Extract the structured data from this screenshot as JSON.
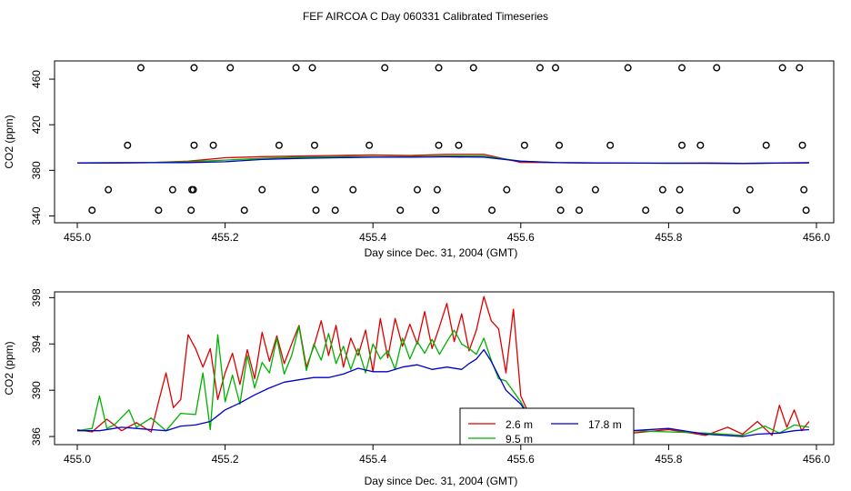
{
  "title": "FEF AIRCOA C  Day 060331  Calibrated Timeseries",
  "colors": {
    "red": "#dd0000",
    "green": "#00b000",
    "blue": "#0000cc",
    "black": "#000000"
  },
  "chart_data": [
    {
      "type": "scatter",
      "xlabel": "Day since Dec. 31, 2004 (GMT)",
      "ylabel": "CO2 (ppm)",
      "xlim": [
        455.0,
        456.0
      ],
      "ylim": [
        334,
        476
      ],
      "xticks": [
        "455.0",
        "455.2",
        "455.4",
        "455.6",
        "455.8",
        "456.0"
      ],
      "yticks": [
        "340",
        "380",
        "420",
        "460"
      ],
      "grid": false,
      "series": [
        {
          "color": "red",
          "x": [
            455.0,
            455.05,
            455.1,
            455.15,
            455.2,
            455.25,
            455.3,
            455.35,
            455.4,
            455.45,
            455.5,
            455.55,
            455.6,
            455.65,
            455.7,
            455.75,
            455.8,
            455.85,
            455.9,
            455.95,
            455.99
          ],
          "values": [
            386.5,
            386.5,
            386.8,
            388,
            391,
            392,
            392.5,
            393,
            393.5,
            393,
            394,
            394,
            387,
            386.8,
            386.5,
            386.3,
            386.3,
            386.5,
            386.2,
            386.5,
            386.8
          ]
        },
        {
          "color": "green",
          "x": [
            455.0,
            455.05,
            455.1,
            455.15,
            455.2,
            455.25,
            455.3,
            455.35,
            455.4,
            455.45,
            455.5,
            455.55,
            455.6,
            455.65,
            455.7,
            455.75,
            455.8,
            455.85,
            455.9,
            455.95,
            455.99
          ],
          "values": [
            386.5,
            386.8,
            386.8,
            387.5,
            389,
            390.5,
            391.5,
            392,
            392,
            392,
            392.5,
            392.5,
            388,
            386.8,
            386.5,
            386.3,
            386.3,
            386.3,
            386.2,
            386.4,
            386.6
          ]
        },
        {
          "color": "blue",
          "x": [
            455.0,
            455.05,
            455.1,
            455.15,
            455.2,
            455.25,
            455.3,
            455.35,
            455.4,
            455.45,
            455.5,
            455.55,
            455.6,
            455.65,
            455.7,
            455.75,
            455.8,
            455.85,
            455.9,
            455.95,
            455.99
          ],
          "values": [
            386.5,
            386.6,
            386.7,
            386.8,
            387.5,
            389.5,
            390.5,
            391,
            391.5,
            391.5,
            391.8,
            391.5,
            388,
            386.7,
            386.5,
            386.3,
            386.2,
            386.2,
            386.0,
            386.3,
            386.6
          ]
        }
      ],
      "points": [
        {
          "x": 455.086,
          "y": 470
        },
        {
          "x": 455.158,
          "y": 470
        },
        {
          "x": 455.207,
          "y": 470
        },
        {
          "x": 455.296,
          "y": 470
        },
        {
          "x": 455.318,
          "y": 470
        },
        {
          "x": 455.416,
          "y": 470
        },
        {
          "x": 455.489,
          "y": 470
        },
        {
          "x": 455.536,
          "y": 470
        },
        {
          "x": 455.626,
          "y": 470
        },
        {
          "x": 455.647,
          "y": 470
        },
        {
          "x": 455.745,
          "y": 470
        },
        {
          "x": 455.818,
          "y": 470
        },
        {
          "x": 455.865,
          "y": 470
        },
        {
          "x": 455.954,
          "y": 470
        },
        {
          "x": 455.977,
          "y": 470
        },
        {
          "x": 455.068,
          "y": 402
        },
        {
          "x": 455.158,
          "y": 402
        },
        {
          "x": 455.184,
          "y": 402
        },
        {
          "x": 455.273,
          "y": 402
        },
        {
          "x": 455.321,
          "y": 402
        },
        {
          "x": 455.395,
          "y": 402
        },
        {
          "x": 455.489,
          "y": 402
        },
        {
          "x": 455.516,
          "y": 402
        },
        {
          "x": 455.605,
          "y": 402
        },
        {
          "x": 455.652,
          "y": 402
        },
        {
          "x": 455.721,
          "y": 402
        },
        {
          "x": 455.818,
          "y": 402
        },
        {
          "x": 455.843,
          "y": 402
        },
        {
          "x": 455.932,
          "y": 402
        },
        {
          "x": 455.981,
          "y": 402
        },
        {
          "x": 455.042,
          "y": 363
        },
        {
          "x": 455.129,
          "y": 363
        },
        {
          "x": 455.155,
          "y": 363
        },
        {
          "x": 455.157,
          "y": 363
        },
        {
          "x": 455.25,
          "y": 363
        },
        {
          "x": 455.322,
          "y": 363
        },
        {
          "x": 455.373,
          "y": 363
        },
        {
          "x": 455.46,
          "y": 363
        },
        {
          "x": 455.487,
          "y": 363
        },
        {
          "x": 455.581,
          "y": 363
        },
        {
          "x": 455.652,
          "y": 363
        },
        {
          "x": 455.701,
          "y": 363
        },
        {
          "x": 455.792,
          "y": 363
        },
        {
          "x": 455.815,
          "y": 363
        },
        {
          "x": 455.91,
          "y": 363
        },
        {
          "x": 455.983,
          "y": 363
        },
        {
          "x": 455.02,
          "y": 345
        },
        {
          "x": 455.11,
          "y": 345
        },
        {
          "x": 455.154,
          "y": 345
        },
        {
          "x": 455.226,
          "y": 345
        },
        {
          "x": 455.323,
          "y": 345
        },
        {
          "x": 455.349,
          "y": 345
        },
        {
          "x": 455.437,
          "y": 345
        },
        {
          "x": 455.485,
          "y": 345
        },
        {
          "x": 455.561,
          "y": 345
        },
        {
          "x": 455.654,
          "y": 345
        },
        {
          "x": 455.679,
          "y": 345
        },
        {
          "x": 455.769,
          "y": 345
        },
        {
          "x": 455.815,
          "y": 345
        },
        {
          "x": 455.892,
          "y": 345
        },
        {
          "x": 455.986,
          "y": 345
        }
      ]
    },
    {
      "type": "line",
      "xlabel": "Day since Dec. 31, 2004 (GMT)",
      "ylabel": "CO2 (ppm)",
      "xlim": [
        455.0,
        456.0
      ],
      "ylim": [
        385.3,
        398.5
      ],
      "xticks": [
        "455.0",
        "455.2",
        "455.4",
        "455.6",
        "455.8",
        "456.0"
      ],
      "yticks": [
        "386",
        "390",
        "394",
        "398"
      ],
      "grid": false,
      "legend": "bottom-center",
      "series": [
        {
          "name": "2.6 m",
          "color": "red",
          "x": [
            455.0,
            455.02,
            455.04,
            455.06,
            455.08,
            455.1,
            455.11,
            455.12,
            455.13,
            455.14,
            455.15,
            455.16,
            455.17,
            455.18,
            455.19,
            455.2,
            455.21,
            455.22,
            455.23,
            455.24,
            455.25,
            455.26,
            455.27,
            455.28,
            455.29,
            455.3,
            455.31,
            455.32,
            455.33,
            455.34,
            455.35,
            455.36,
            455.37,
            455.38,
            455.39,
            455.4,
            455.41,
            455.42,
            455.43,
            455.44,
            455.45,
            455.46,
            455.47,
            455.48,
            455.49,
            455.5,
            455.51,
            455.52,
            455.53,
            455.54,
            455.55,
            455.56,
            455.57,
            455.58,
            455.59,
            455.6,
            455.62,
            455.65,
            455.7,
            455.75,
            455.8,
            455.85,
            455.88,
            455.9,
            455.92,
            455.94,
            455.95,
            455.96,
            455.97,
            455.98,
            455.99
          ],
          "values": [
            386.6,
            386.4,
            387.5,
            386.5,
            387.2,
            386.4,
            389,
            391.5,
            388.5,
            389.2,
            394.8,
            393.6,
            392,
            393.6,
            389.2,
            391.5,
            393.2,
            390.5,
            393.5,
            391,
            395,
            392.5,
            394.7,
            392.3,
            394,
            395.6,
            392,
            393.8,
            396,
            393,
            395.6,
            392,
            394.5,
            393,
            395.2,
            391.6,
            396.2,
            392.8,
            396.2,
            393.8,
            395.7,
            394,
            396.8,
            393.6,
            395.5,
            397.5,
            394.2,
            396.6,
            393.4,
            395.2,
            398.1,
            396,
            395.3,
            391.5,
            397,
            389.5,
            386.7,
            386.7,
            386.9,
            386.3,
            386.6,
            386.1,
            386.8,
            386.2,
            387.3,
            386.1,
            388.7,
            386.8,
            388.3,
            386.5,
            387.3
          ]
        },
        {
          "name": "9.5 m",
          "color": "green",
          "x": [
            455.0,
            455.02,
            455.03,
            455.04,
            455.05,
            455.07,
            455.08,
            455.1,
            455.12,
            455.14,
            455.16,
            455.17,
            455.18,
            455.19,
            455.2,
            455.21,
            455.22,
            455.23,
            455.24,
            455.25,
            455.26,
            455.27,
            455.28,
            455.29,
            455.3,
            455.31,
            455.32,
            455.33,
            455.34,
            455.35,
            455.36,
            455.37,
            455.38,
            455.39,
            455.4,
            455.41,
            455.42,
            455.43,
            455.44,
            455.45,
            455.46,
            455.47,
            455.48,
            455.49,
            455.5,
            455.51,
            455.52,
            455.53,
            455.54,
            455.55,
            455.56,
            455.57,
            455.58,
            455.6,
            455.62,
            455.65,
            455.7,
            455.75,
            455.8,
            455.85,
            455.9,
            455.93,
            455.95,
            455.97,
            455.99
          ],
          "values": [
            386.5,
            386.7,
            389.5,
            386.7,
            387,
            388.3,
            386.8,
            387.6,
            386.5,
            388,
            387.9,
            391.5,
            386.6,
            394.8,
            389,
            391.3,
            388.8,
            393,
            390.2,
            392.4,
            391.5,
            394.5,
            391.4,
            393,
            395.5,
            391.7,
            394,
            392.6,
            394.9,
            392.3,
            393.8,
            391.8,
            393.6,
            391.5,
            394,
            392.7,
            393.4,
            391.8,
            394.5,
            392.7,
            394.2,
            393.2,
            394.4,
            393.1,
            394.2,
            395.2,
            394,
            393.6,
            393.1,
            394.5,
            392.6,
            391,
            390.8,
            389,
            386.8,
            386.7,
            386.7,
            386.5,
            386.4,
            386.3,
            386.1,
            386.9,
            386.3,
            387,
            386.8
          ]
        },
        {
          "name": "17.8 m",
          "color": "blue",
          "x": [
            455.0,
            455.03,
            455.06,
            455.08,
            455.1,
            455.12,
            455.14,
            455.16,
            455.18,
            455.19,
            455.2,
            455.22,
            455.24,
            455.26,
            455.28,
            455.3,
            455.32,
            455.34,
            455.36,
            455.38,
            455.4,
            455.42,
            455.44,
            455.46,
            455.48,
            455.5,
            455.52,
            455.53,
            455.54,
            455.55,
            455.56,
            455.58,
            455.6,
            455.62,
            455.65,
            455.7,
            455.75,
            455.8,
            455.85,
            455.9,
            455.92,
            455.95,
            455.97,
            455.99
          ],
          "values": [
            386.5,
            386.5,
            386.8,
            386.7,
            386.6,
            386.5,
            386.9,
            387,
            387.3,
            387.8,
            388.3,
            388.9,
            389.6,
            390.2,
            390.7,
            390.9,
            391.1,
            391.1,
            391.4,
            391.9,
            391.6,
            391.6,
            392,
            392.2,
            391.8,
            392,
            391.8,
            392.3,
            392.7,
            393.5,
            392.5,
            390,
            388.8,
            386.9,
            386.7,
            386.6,
            386.5,
            386.7,
            386.2,
            386.0,
            386.2,
            386.3,
            386.5,
            386.6
          ]
        }
      ]
    }
  ]
}
